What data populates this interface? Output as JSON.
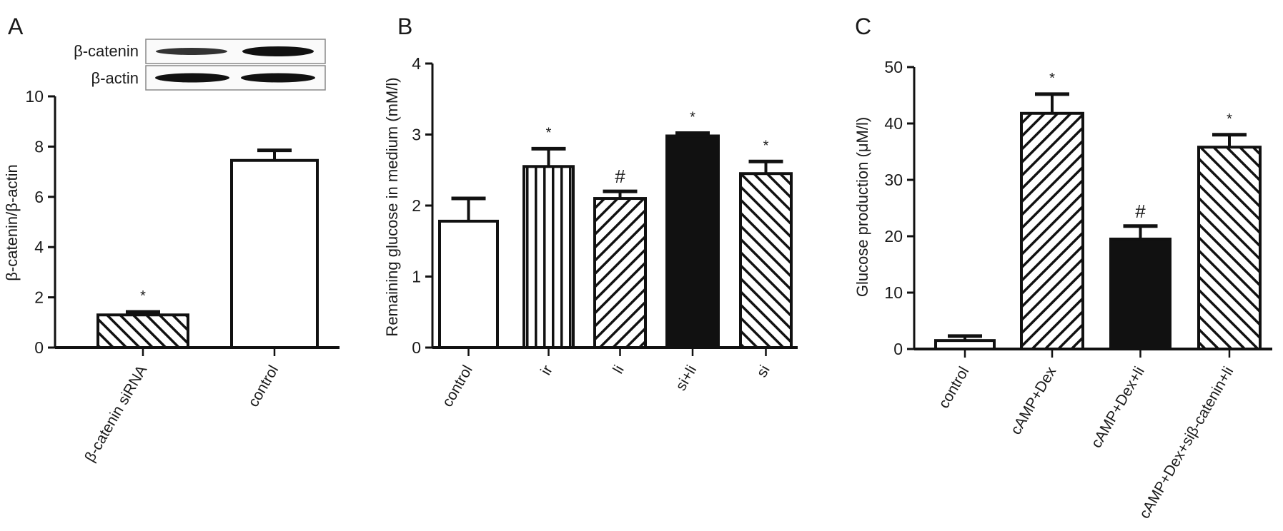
{
  "colors": {
    "ink": "#111111",
    "background": "#ffffff"
  },
  "chart_data": [
    {
      "panel": "A",
      "type": "bar",
      "blot": {
        "rows": [
          "β-catenin",
          "β-actin"
        ]
      },
      "ylabel": "β-catenin/β-actin",
      "ylim": [
        0,
        10
      ],
      "yticks": [
        0,
        2,
        4,
        6,
        8,
        10
      ],
      "categories": [
        "β-catenin siRNA",
        "control"
      ],
      "values": [
        1.3,
        7.45
      ],
      "errors": [
        0.12,
        0.4
      ],
      "patterns": [
        "backslash",
        "white"
      ],
      "annotations": [
        "*",
        ""
      ]
    },
    {
      "panel": "B",
      "type": "bar",
      "ylabel": "Remaining glucose in medium (mM/l)",
      "ylim": [
        0,
        4
      ],
      "yticks": [
        0,
        1,
        2,
        3,
        4
      ],
      "categories": [
        "control",
        "ir",
        "li",
        "si+li",
        "si"
      ],
      "values": [
        1.78,
        2.55,
        2.1,
        2.98,
        2.45
      ],
      "errors": [
        0.32,
        0.25,
        0.1,
        0.04,
        0.17
      ],
      "patterns": [
        "white",
        "vertical",
        "slash",
        "black",
        "backslash"
      ],
      "annotations": [
        "",
        "*",
        "#",
        "*",
        "*"
      ]
    },
    {
      "panel": "C",
      "type": "bar",
      "ylabel": "Glucose production (μM/l)",
      "ylim": [
        0,
        50
      ],
      "yticks": [
        0,
        10,
        20,
        30,
        40,
        50
      ],
      "categories": [
        "control",
        "cAMP+Dex",
        "cAMP+Dex+li",
        "cAMP+Dex+siβ-catenin+li"
      ],
      "values": [
        1.5,
        41.8,
        19.5,
        35.8
      ],
      "errors": [
        0.8,
        3.4,
        2.3,
        2.2
      ],
      "patterns": [
        "white",
        "slash",
        "black",
        "backslash"
      ],
      "annotations": [
        "",
        "*",
        "#",
        "*"
      ]
    }
  ]
}
